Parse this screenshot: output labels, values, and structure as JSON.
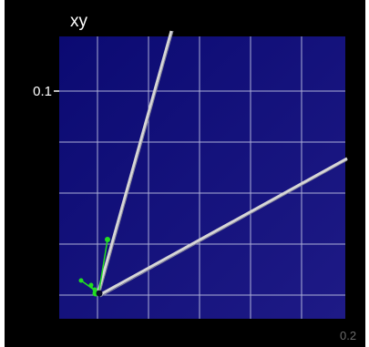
{
  "plot": {
    "title": "xy",
    "y_tick_label": "0.1",
    "x_tick_label": "0.2",
    "colors": {
      "background": "#000000",
      "plot_gradient_start": "#0b0a72",
      "plot_gradient_end": "#1e1a86",
      "grid": "#c8cce8",
      "rays": "#d0d0d0",
      "green_marks": "#22dd22"
    }
  }
}
